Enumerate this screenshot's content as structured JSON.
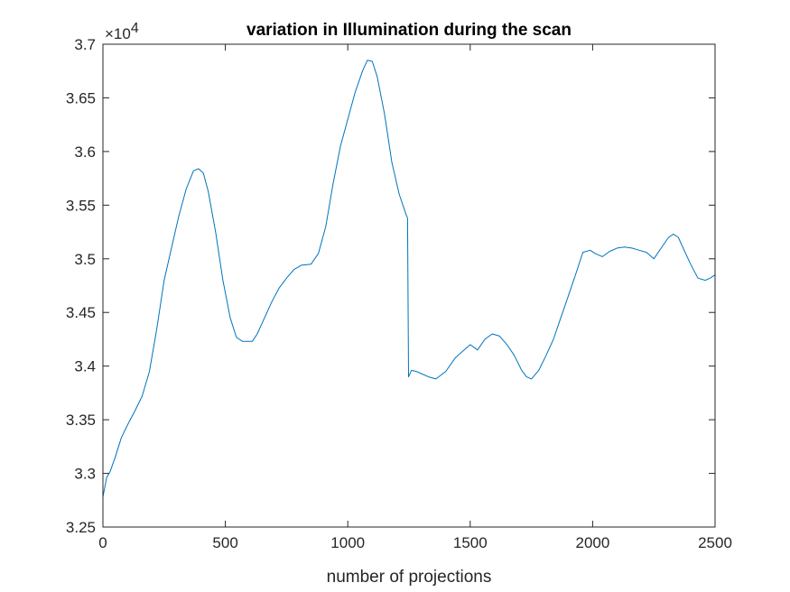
{
  "chart_data": {
    "type": "line",
    "title": "variation in  Illumination during the scan",
    "xlabel": "number of projections",
    "ylabel": "",
    "xlim": [
      0,
      2500
    ],
    "ylim": [
      32500,
      37000
    ],
    "y_exponent_label": "×10",
    "y_exponent_power": "4",
    "xticks": [
      0,
      500,
      1000,
      1500,
      2000,
      2500
    ],
    "xtick_labels": [
      "0",
      "500",
      "1000",
      "1500",
      "2000",
      "2500"
    ],
    "yticks": [
      32500,
      33000,
      33500,
      34000,
      34500,
      35000,
      35500,
      36000,
      36500,
      37000
    ],
    "ytick_labels": [
      "3.25",
      "3.3",
      "3.35",
      "3.4",
      "3.45",
      "3.5",
      "3.55",
      "3.6",
      "3.65",
      "3.7"
    ],
    "grid": false,
    "line_color": "#0072BD",
    "series": [
      {
        "x": [
          0,
          15,
          30,
          50,
          75,
          100,
          130,
          160,
          190,
          220,
          250,
          280,
          310,
          340,
          370,
          390,
          410,
          430,
          460,
          490,
          520,
          545,
          570,
          590,
          610,
          630,
          660,
          690,
          720,
          750,
          780,
          810,
          850,
          880,
          910,
          940,
          970,
          1000,
          1030,
          1060,
          1080,
          1100,
          1120,
          1150,
          1180,
          1210,
          1240,
          1244,
          1248,
          1260,
          1280,
          1300,
          1330,
          1360,
          1400,
          1440,
          1480,
          1500,
          1530,
          1560,
          1590,
          1620,
          1650,
          1680,
          1710,
          1730,
          1750,
          1780,
          1810,
          1840,
          1870,
          1900,
          1930,
          1960,
          1990,
          2010,
          2040,
          2070,
          2100,
          2130,
          2160,
          2190,
          2220,
          2250,
          2280,
          2310,
          2330,
          2350,
          2370,
          2400,
          2430,
          2460,
          2480,
          2500
        ],
        "y": [
          32780,
          32960,
          33020,
          33150,
          33330,
          33450,
          33580,
          33720,
          33950,
          34350,
          34800,
          35100,
          35400,
          35650,
          35820,
          35840,
          35800,
          35630,
          35250,
          34800,
          34450,
          34270,
          34230,
          34230,
          34230,
          34300,
          34450,
          34600,
          34730,
          34820,
          34900,
          34940,
          34950,
          35050,
          35300,
          35700,
          36050,
          36300,
          36550,
          36750,
          36850,
          36840,
          36700,
          36350,
          35900,
          35600,
          35400,
          35380,
          33900,
          33960,
          33950,
          33930,
          33900,
          33880,
          33950,
          34080,
          34160,
          34200,
          34150,
          34250,
          34300,
          34280,
          34200,
          34100,
          33960,
          33900,
          33880,
          33960,
          34100,
          34250,
          34450,
          34650,
          34850,
          35060,
          35080,
          35050,
          35020,
          35070,
          35100,
          35110,
          35100,
          35080,
          35060,
          35000,
          35100,
          35200,
          35230,
          35200,
          35100,
          34950,
          34820,
          34800,
          34820,
          34850
        ]
      }
    ]
  }
}
